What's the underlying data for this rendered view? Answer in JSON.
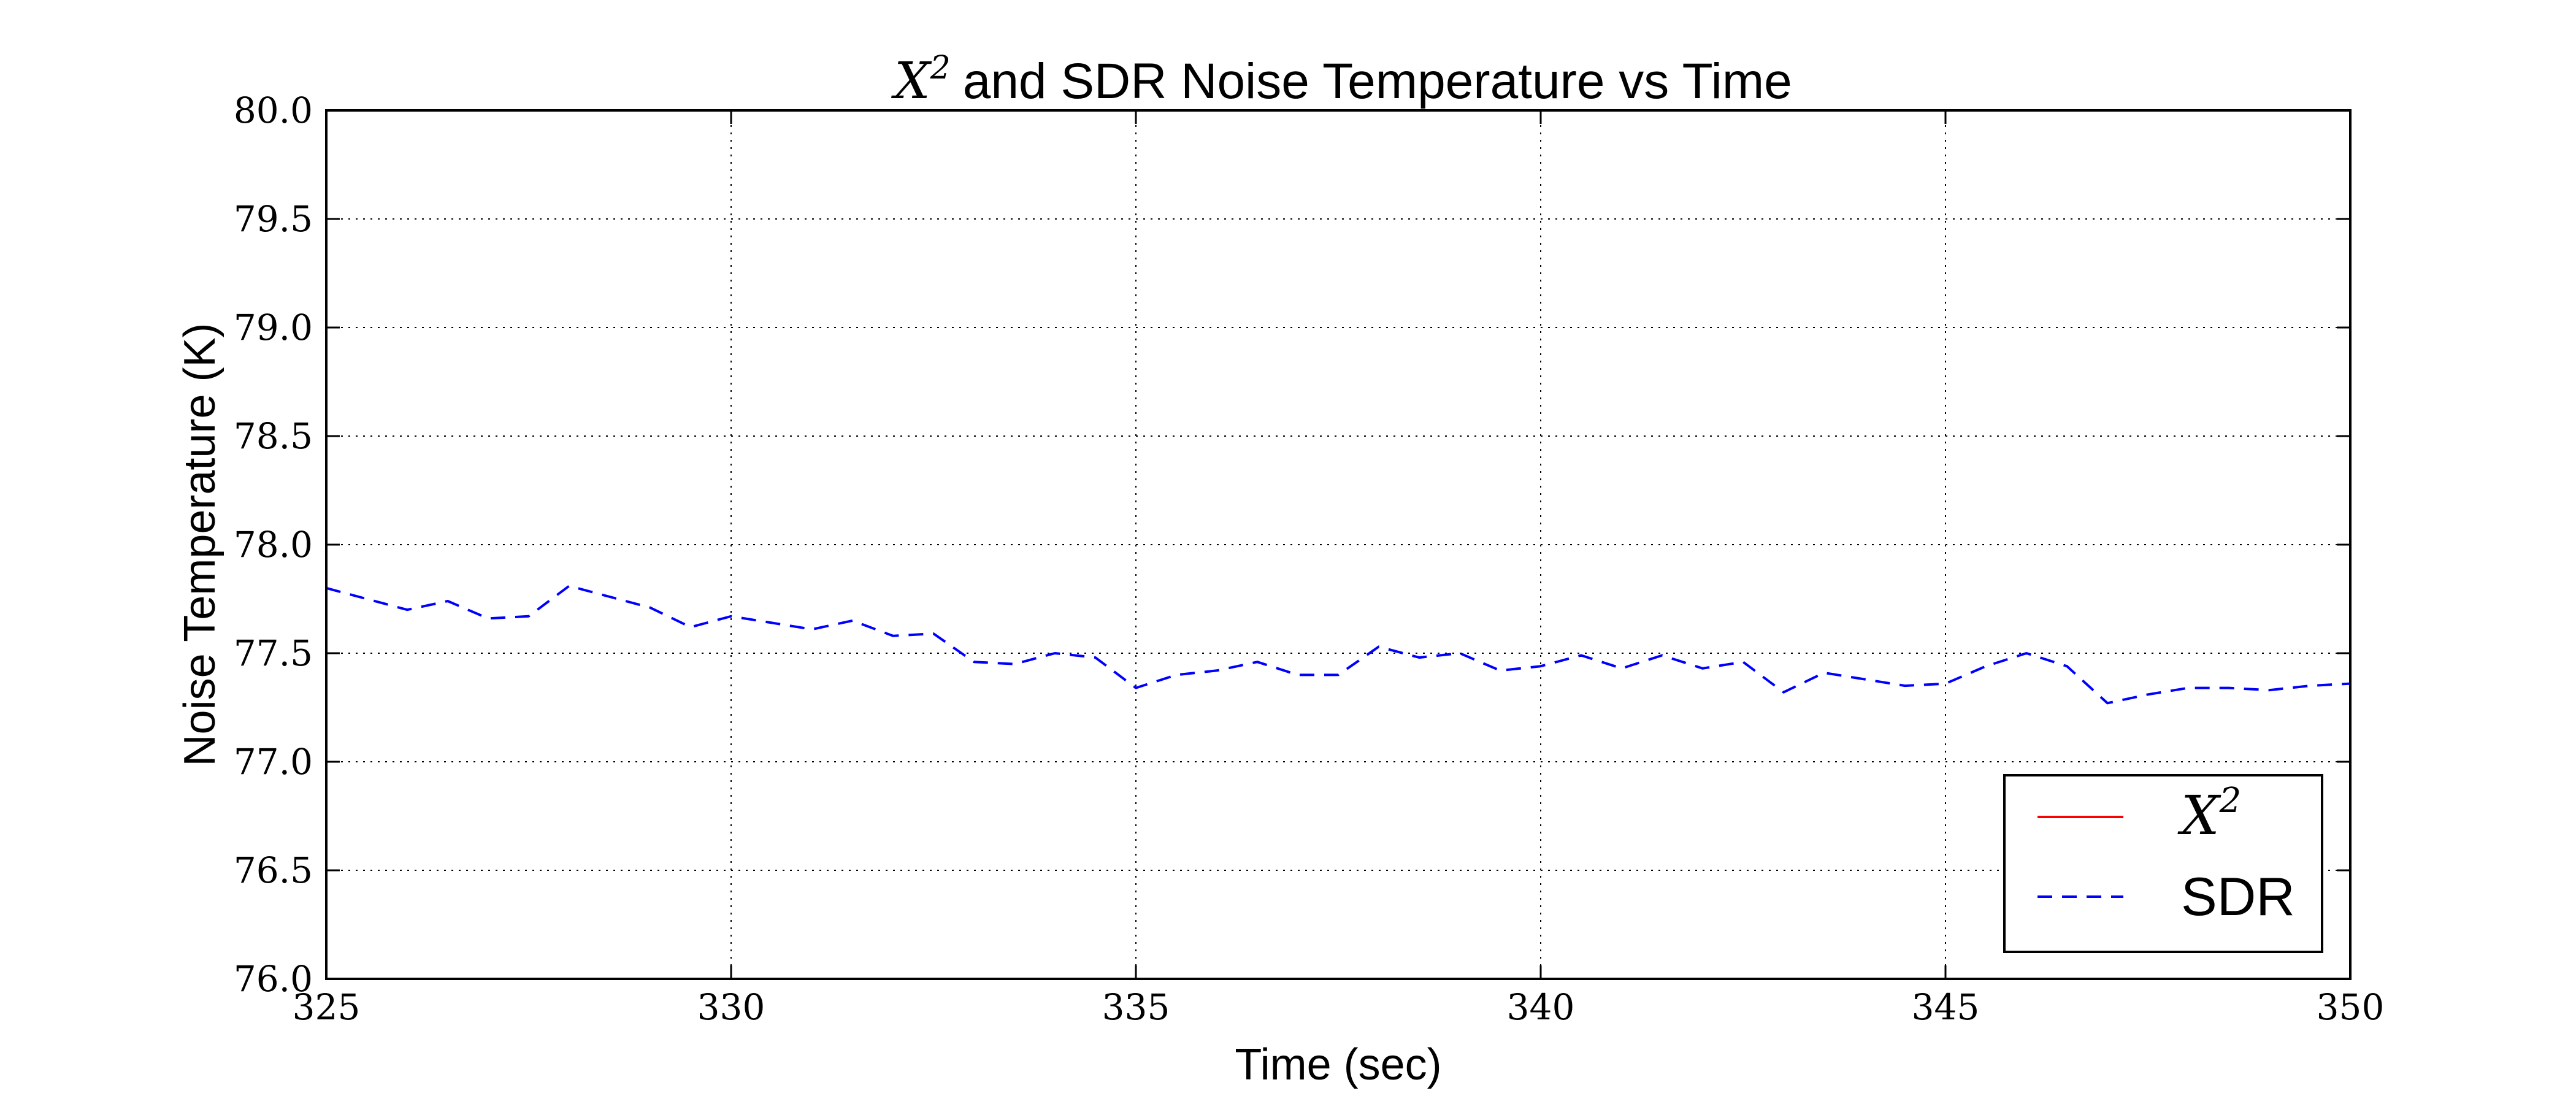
{
  "chart_data": {
    "type": "line",
    "title": "and SDR Noise Temperature vs Time",
    "title_math": {
      "base": "X",
      "sup": "2"
    },
    "xlabel": "Time (sec)",
    "ylabel": "Noise Temperature (K)",
    "xlim": [
      325,
      350
    ],
    "ylim": [
      76.0,
      80.0
    ],
    "xticks": [
      "325",
      "330",
      "335",
      "340",
      "345",
      "350"
    ],
    "yticks": [
      "76.0",
      "76.5",
      "77.0",
      "77.5",
      "78.0",
      "78.5",
      "79.0",
      "79.5",
      "80.0"
    ],
    "grid": true,
    "legend_position": "lower-right",
    "series": [
      {
        "name": "X^2",
        "legend_label": {
          "base": "X",
          "sup": "2"
        },
        "color": "#ff0000",
        "style": "solid",
        "x": [],
        "y": []
      },
      {
        "name": "SDR",
        "color": "#0000ff",
        "style": "dashed",
        "x": [
          325.0,
          325.5,
          326.0,
          326.5,
          327.0,
          327.5,
          328.0,
          328.5,
          329.0,
          329.5,
          330.0,
          330.5,
          331.0,
          331.5,
          332.0,
          332.5,
          333.0,
          333.5,
          334.0,
          334.5,
          335.0,
          335.5,
          336.0,
          336.5,
          337.0,
          337.5,
          338.0,
          338.5,
          339.0,
          339.5,
          340.0,
          340.5,
          341.0,
          341.5,
          342.0,
          342.5,
          343.0,
          343.5,
          344.0,
          344.5,
          345.0,
          345.5,
          346.0,
          346.5,
          347.0,
          347.5,
          348.0,
          348.5,
          349.0,
          349.5,
          350.0
        ],
        "y": [
          77.8,
          77.75,
          77.7,
          77.74,
          77.66,
          77.67,
          77.81,
          77.76,
          77.71,
          77.62,
          77.67,
          77.64,
          77.61,
          77.65,
          77.58,
          77.59,
          77.46,
          77.45,
          77.5,
          77.48,
          77.34,
          77.4,
          77.42,
          77.46,
          77.4,
          77.4,
          77.53,
          77.48,
          77.5,
          77.42,
          77.44,
          77.49,
          77.43,
          77.49,
          77.43,
          77.46,
          77.32,
          77.41,
          77.38,
          77.35,
          77.36,
          77.44,
          77.5,
          77.44,
          77.27,
          77.31,
          77.34,
          77.34,
          77.33,
          77.35,
          77.36
        ]
      }
    ]
  }
}
